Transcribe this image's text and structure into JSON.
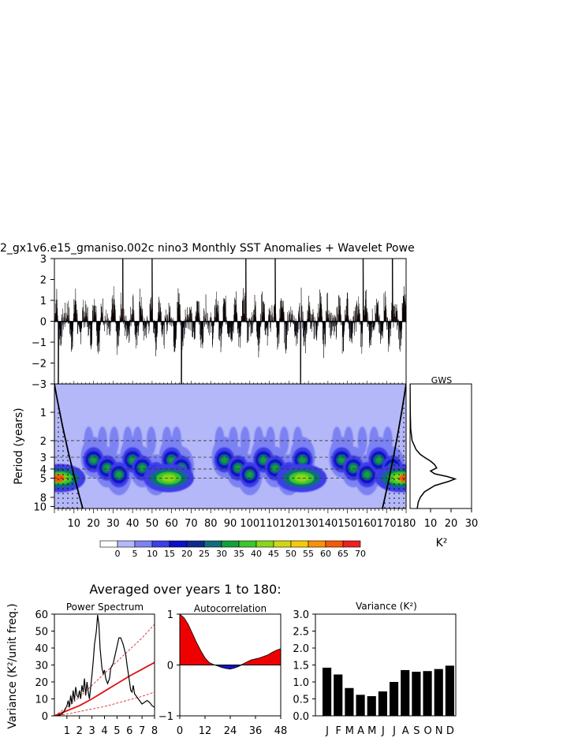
{
  "main_title": "2_gx1v6.e15_gmaniso.002c nino3 Monthly SST Anomalies + Wavelet Powe",
  "averaged_title": "Averaged over years 1 to 180:",
  "chart_data": [
    {
      "id": "anomaly",
      "type": "area",
      "title": "2_gx1v6.e15_gmaniso.002c nino3 Monthly SST Anomalies + Wavelet Powe",
      "ylim": [
        -3,
        3
      ],
      "yticks": [
        "3",
        "2",
        "1",
        "0",
        "−1",
        "−2",
        "−3"
      ],
      "xlim": [
        0,
        180
      ],
      "positive_color": "#dd1111",
      "negative_color": "#1111cc",
      "peak_positive_years": [
        35,
        50,
        98,
        113,
        158,
        173
      ],
      "peak_negative_years": [
        2,
        65,
        126
      ]
    },
    {
      "id": "wavelet",
      "type": "heatmap",
      "ylabel": "Period (years)",
      "yticks": [
        "1",
        "2",
        "3",
        "4",
        "5",
        "8",
        "10"
      ],
      "xticks": [
        "10",
        "20",
        "30",
        "40",
        "50",
        "60",
        "70",
        "80",
        "90",
        "100",
        "110",
        "120",
        "130",
        "140",
        "150",
        "160",
        "170",
        "180"
      ],
      "xlim": [
        0,
        180
      ],
      "period_range": [
        0.5,
        10.5
      ],
      "dashed_periods": [
        2,
        3,
        4,
        5
      ],
      "background_color": "#b4b8f8",
      "max_power_period": 5,
      "colorbar": {
        "labels": [
          "0",
          "5",
          "10",
          "15",
          "20",
          "25",
          "30",
          "35",
          "40",
          "45",
          "50",
          "55",
          "60",
          "65",
          "70"
        ],
        "colors": [
          "#ffffff",
          "#b4b8f8",
          "#7c82f2",
          "#3e3ee8",
          "#0d10c8",
          "#0b2a8f",
          "#0f6e7c",
          "#13a03a",
          "#3cc62a",
          "#88d819",
          "#d2d80f",
          "#f7c90a",
          "#f79209",
          "#f45a0a",
          "#ee2020"
        ]
      }
    },
    {
      "id": "gws",
      "type": "line",
      "title": "GWS",
      "xlabel": "K²",
      "xticks": [
        "10",
        "20",
        "30"
      ],
      "xlim": [
        0,
        30
      ],
      "peak": {
        "period": 5,
        "value": 22
      }
    },
    {
      "id": "power_spectrum",
      "type": "line",
      "title": "Power Spectrum",
      "ylabel": "Variance (K²/unit freq.)",
      "ylim": [
        0,
        60
      ],
      "yticks": [
        "60",
        "50",
        "40",
        "30",
        "20",
        "10",
        "0"
      ],
      "xlim": [
        0,
        8
      ],
      "xticks": [
        "1",
        "2",
        "3",
        "4",
        "5",
        "6",
        "7",
        "8"
      ],
      "spectrum": [
        [
          0.2,
          0
        ],
        [
          0.4,
          0.5
        ],
        [
          0.6,
          1
        ],
        [
          0.8,
          3
        ],
        [
          1.0,
          6
        ],
        [
          1.1,
          9
        ],
        [
          1.2,
          5
        ],
        [
          1.3,
          12
        ],
        [
          1.4,
          7
        ],
        [
          1.5,
          15
        ],
        [
          1.6,
          9
        ],
        [
          1.7,
          17
        ],
        [
          1.8,
          12
        ],
        [
          1.9,
          11
        ],
        [
          2.0,
          15
        ],
        [
          2.1,
          10
        ],
        [
          2.2,
          18
        ],
        [
          2.3,
          14
        ],
        [
          2.4,
          22
        ],
        [
          2.5,
          12
        ],
        [
          2.6,
          20
        ],
        [
          2.7,
          14
        ],
        [
          2.8,
          10
        ],
        [
          2.9,
          17
        ],
        [
          3.0,
          24
        ],
        [
          3.1,
          32
        ],
        [
          3.2,
          42
        ],
        [
          3.35,
          50
        ],
        [
          3.45,
          59.5
        ],
        [
          3.55,
          54
        ],
        [
          3.65,
          40
        ],
        [
          3.8,
          28
        ],
        [
          3.9,
          25
        ],
        [
          4.0,
          27
        ],
        [
          4.1,
          22
        ],
        [
          4.25,
          19
        ],
        [
          4.4,
          22
        ],
        [
          4.5,
          28
        ],
        [
          4.7,
          31
        ],
        [
          4.85,
          36
        ],
        [
          5.0,
          41
        ],
        [
          5.15,
          46
        ],
        [
          5.3,
          46
        ],
        [
          5.5,
          42
        ],
        [
          5.7,
          36
        ],
        [
          5.8,
          30
        ],
        [
          5.9,
          25
        ],
        [
          6.0,
          20
        ],
        [
          6.1,
          15
        ],
        [
          6.2,
          14
        ],
        [
          6.3,
          18
        ],
        [
          6.4,
          13
        ],
        [
          6.6,
          11
        ],
        [
          6.8,
          9
        ],
        [
          7.0,
          7
        ],
        [
          7.2,
          8
        ],
        [
          7.4,
          9
        ],
        [
          7.6,
          8
        ],
        [
          7.8,
          6
        ],
        [
          8.0,
          5
        ]
      ],
      "red_noise": [
        [
          0,
          0
        ],
        [
          1,
          3
        ],
        [
          2,
          6
        ],
        [
          3,
          10
        ],
        [
          4,
          14.5
        ],
        [
          5,
          19
        ],
        [
          6,
          23.5
        ],
        [
          7,
          27.5
        ],
        [
          8,
          31.5
        ]
      ],
      "upper_confidence": [
        [
          0,
          0
        ],
        [
          1,
          5
        ],
        [
          2,
          11
        ],
        [
          3,
          18
        ],
        [
          4,
          25
        ],
        [
          5,
          32
        ],
        [
          6,
          39
        ],
        [
          7,
          46
        ],
        [
          8,
          54
        ]
      ],
      "lower_confidence": [
        [
          0,
          0
        ],
        [
          1,
          1
        ],
        [
          2,
          2.5
        ],
        [
          3,
          4
        ],
        [
          4,
          5.5
        ],
        [
          5,
          7.5
        ],
        [
          6,
          9.5
        ],
        [
          7,
          11.5
        ],
        [
          8,
          14
        ]
      ]
    },
    {
      "id": "autocorrelation",
      "type": "area",
      "title": "Autocorrelation",
      "ylim": [
        -1,
        1
      ],
      "yticks": [
        "1",
        "0",
        "−1"
      ],
      "xlim": [
        0,
        48
      ],
      "xticks": [
        "0",
        "12",
        "24",
        "36",
        "48"
      ],
      "values": [
        [
          0,
          1
        ],
        [
          2,
          0.93
        ],
        [
          4,
          0.8
        ],
        [
          6,
          0.62
        ],
        [
          8,
          0.44
        ],
        [
          10,
          0.28
        ],
        [
          12,
          0.14
        ],
        [
          14,
          0.05
        ],
        [
          16,
          0.01
        ],
        [
          18,
          -0.02
        ],
        [
          20,
          -0.05
        ],
        [
          22,
          -0.07
        ],
        [
          24,
          -0.08
        ],
        [
          26,
          -0.06
        ],
        [
          28,
          -0.03
        ],
        [
          30,
          0.02
        ],
        [
          32,
          0.06
        ],
        [
          34,
          0.1
        ],
        [
          36,
          0.12
        ],
        [
          38,
          0.14
        ],
        [
          40,
          0.17
        ],
        [
          42,
          0.2
        ],
        [
          44,
          0.25
        ],
        [
          46,
          0.29
        ],
        [
          48,
          0.32
        ]
      ]
    },
    {
      "id": "variance",
      "type": "bar",
      "title": "Variance (K²)",
      "categories": [
        "J",
        "F",
        "M",
        "A",
        "M",
        "J",
        "J",
        "A",
        "S",
        "O",
        "N",
        "D"
      ],
      "values": [
        1.42,
        1.22,
        0.82,
        0.62,
        0.58,
        0.72,
        1.0,
        1.35,
        1.3,
        1.32,
        1.38,
        1.48
      ],
      "ylim": [
        0,
        3
      ],
      "yticks": [
        "3.0",
        "2.5",
        "2.0",
        "1.5",
        "1.0",
        "0.5",
        "0.0"
      ]
    }
  ]
}
